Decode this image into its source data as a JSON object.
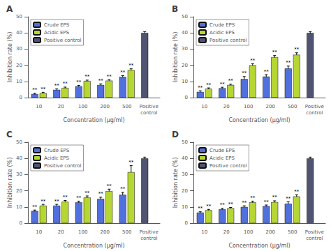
{
  "chart_data": [
    {
      "type": "bar",
      "title": "A",
      "categories": [
        "10",
        "20",
        "100",
        "200",
        "500",
        "Positive\ncontrol"
      ],
      "xlabel": "Concentration (μg/ml)",
      "ylabel": "Inhibition rate (%)",
      "ylim": [
        0,
        50
      ],
      "yticks": [
        0,
        10,
        20,
        30,
        40,
        50
      ],
      "grid": false,
      "legend": "upper left",
      "series": [
        {
          "name": "Crude EPS",
          "values": [
            2.2,
            4.8,
            7.0,
            7.8,
            12.8,
            null
          ],
          "errors": [
            0.5,
            0.6,
            0.6,
            0.7,
            0.8,
            null
          ],
          "annotations": [
            "**",
            "**",
            "**",
            "**",
            "**",
            null
          ]
        },
        {
          "name": "Acidic EPS",
          "values": [
            2.8,
            6.0,
            10.3,
            10.5,
            17.0,
            null
          ],
          "errors": [
            0.5,
            0.5,
            0.5,
            0.6,
            0.8,
            null
          ],
          "annotations": [
            "**",
            "**",
            "**",
            "**",
            "**",
            null
          ]
        },
        {
          "name": "Positive control",
          "values": [
            null,
            null,
            null,
            null,
            null,
            40.0
          ],
          "errors": [
            null,
            null,
            null,
            null,
            null,
            0.8
          ]
        }
      ]
    },
    {
      "type": "bar",
      "title": "B",
      "categories": [
        "10",
        "20",
        "100",
        "200",
        "500",
        "Positive\ncontrol"
      ],
      "xlabel": "Concentration (μg/ml)",
      "ylabel": "Inhibition rate (%)",
      "ylim": [
        0,
        50
      ],
      "yticks": [
        0,
        10,
        20,
        30,
        40,
        50
      ],
      "grid": false,
      "legend": "upper left",
      "series": [
        {
          "name": "Crude EPS",
          "values": [
            3.5,
            5.8,
            11.5,
            13.0,
            18.0,
            null
          ],
          "errors": [
            0.7,
            0.6,
            1.5,
            1.2,
            1.5,
            null
          ],
          "annotations": [
            "**",
            "**",
            "**",
            "**",
            "**",
            null
          ]
        },
        {
          "name": "Acidic EPS",
          "values": [
            5.5,
            7.8,
            20.0,
            25.0,
            26.5,
            null
          ],
          "errors": [
            0.5,
            0.5,
            1.0,
            1.0,
            1.2,
            null
          ],
          "annotations": [
            "**",
            "**",
            "**",
            "**",
            "**",
            null
          ]
        },
        {
          "name": "Positive control",
          "values": [
            null,
            null,
            null,
            null,
            null,
            40.0
          ],
          "errors": [
            null,
            null,
            null,
            null,
            null,
            0.8
          ]
        }
      ]
    },
    {
      "type": "bar",
      "title": "C",
      "categories": [
        "10",
        "20",
        "100",
        "200",
        "500",
        "Positive\ncontrol"
      ],
      "xlabel": "Concentration (μg/ml)",
      "ylabel": "Inhibition rate (%)",
      "ylim": [
        0,
        50
      ],
      "yticks": [
        0,
        10,
        20,
        30,
        40,
        50
      ],
      "grid": false,
      "legend": "upper left",
      "series": [
        {
          "name": "Crude EPS",
          "values": [
            7.5,
            10.8,
            12.8,
            15.0,
            17.5,
            null
          ],
          "errors": [
            0.6,
            0.8,
            0.8,
            1.0,
            1.5,
            null
          ],
          "annotations": [
            "**",
            "**",
            "**",
            "**",
            "**",
            null
          ]
        },
        {
          "name": "Acidic EPS",
          "values": [
            10.8,
            13.2,
            15.8,
            19.8,
            31.5,
            null
          ],
          "errors": [
            0.8,
            0.8,
            1.0,
            1.2,
            4.0,
            null
          ],
          "annotations": [
            "**",
            "**",
            "**",
            "**",
            "**",
            null
          ]
        },
        {
          "name": "Positive control",
          "values": [
            null,
            null,
            null,
            null,
            null,
            40.0
          ],
          "errors": [
            null,
            null,
            null,
            null,
            null,
            0.8
          ]
        }
      ]
    },
    {
      "type": "bar",
      "title": "D",
      "categories": [
        "10",
        "20",
        "100",
        "200",
        "500",
        "Positive\ncontrol"
      ],
      "xlabel": "Concentration (μg/ml)",
      "ylabel": "Inhibition rate (%)",
      "ylim": [
        0,
        50
      ],
      "yticks": [
        0,
        10,
        20,
        30,
        40,
        50
      ],
      "grid": false,
      "legend": "upper left",
      "series": [
        {
          "name": "Crude EPS",
          "values": [
            6.5,
            8.5,
            10.0,
            10.5,
            12.0,
            null
          ],
          "errors": [
            0.5,
            0.6,
            0.7,
            0.7,
            1.2,
            null
          ],
          "annotations": [
            "**",
            "**",
            "**",
            "**",
            "**",
            null
          ]
        },
        {
          "name": "Acidic EPS",
          "values": [
            8.0,
            9.2,
            12.8,
            13.0,
            16.5,
            null
          ],
          "errors": [
            0.5,
            0.5,
            0.8,
            0.8,
            1.0,
            null
          ],
          "annotations": [
            "**",
            "**",
            "**",
            "**",
            "**",
            null
          ]
        },
        {
          "name": "Positive control",
          "values": [
            null,
            null,
            null,
            null,
            null,
            40.0
          ],
          "errors": [
            null,
            null,
            null,
            null,
            null,
            0.8
          ]
        }
      ]
    }
  ]
}
